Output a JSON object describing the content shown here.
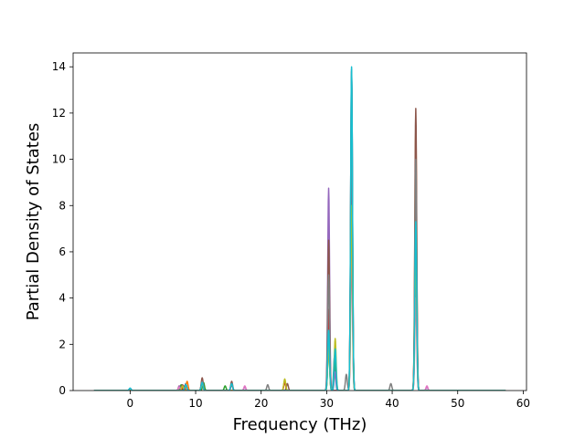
{
  "chart_data": {
    "type": "line",
    "title": "",
    "xlabel": "Frequency (THz)",
    "ylabel": "Partial Density of States",
    "xlim": [
      -8.7,
      60.5
    ],
    "ylim": [
      0,
      14.6
    ],
    "xticks": [
      0,
      10,
      20,
      30,
      40,
      50,
      60
    ],
    "yticks": [
      0,
      2,
      4,
      6,
      8,
      10,
      12,
      14
    ],
    "xtick_labels": [
      "0",
      "10",
      "20",
      "30",
      "40",
      "50",
      "60"
    ],
    "ytick_labels": [
      "0",
      "2",
      "4",
      "6",
      "8",
      "10",
      "12",
      "14"
    ],
    "grid": false,
    "legend": "none",
    "x_data_range": [
      -5.5,
      57.3
    ],
    "series": [
      {
        "color": "#1f77b4",
        "peaks": [
          [
            0.0,
            0.1
          ],
          [
            8.5,
            0.3
          ],
          [
            11.0,
            0.4
          ],
          [
            15.5,
            0.3
          ],
          [
            30.3,
            2.4
          ],
          [
            31.2,
            1.5
          ],
          [
            33.8,
            13.9
          ],
          [
            43.6,
            7.2
          ]
        ]
      },
      {
        "color": "#ff7f0e",
        "peaks": [
          [
            7.5,
            0.2
          ],
          [
            8.7,
            0.4
          ],
          [
            11.0,
            0.3
          ],
          [
            23.6,
            0.45
          ],
          [
            30.3,
            3.0
          ],
          [
            33.8,
            11.0
          ],
          [
            43.6,
            11.4
          ]
        ]
      },
      {
        "color": "#2ca02c",
        "peaks": [
          [
            7.8,
            0.25
          ],
          [
            11.2,
            0.35
          ],
          [
            14.5,
            0.2
          ],
          [
            30.3,
            2.0
          ],
          [
            31.3,
            1.3
          ],
          [
            33.8,
            9.0
          ],
          [
            43.6,
            6.0
          ]
        ]
      },
      {
        "color": "#d62728",
        "peaks": [
          [
            8.2,
            0.2
          ],
          [
            11.0,
            0.45
          ],
          [
            15.5,
            0.25
          ],
          [
            23.6,
            0.35
          ],
          [
            30.3,
            3.5
          ],
          [
            33.8,
            10.0
          ],
          [
            43.6,
            9.0
          ]
        ]
      },
      {
        "color": "#9467bd",
        "peaks": [
          [
            7.5,
            0.2
          ],
          [
            11.0,
            0.3
          ],
          [
            17.5,
            0.15
          ],
          [
            30.3,
            8.75
          ],
          [
            31.3,
            0.8
          ],
          [
            33.8,
            6.0
          ],
          [
            43.6,
            5.0
          ],
          [
            45.3,
            0.15
          ]
        ]
      },
      {
        "color": "#8c564b",
        "peaks": [
          [
            8.0,
            0.25
          ],
          [
            11.0,
            0.55
          ],
          [
            15.5,
            0.4
          ],
          [
            24.0,
            0.3
          ],
          [
            30.3,
            6.5
          ],
          [
            33.8,
            13.8
          ],
          [
            43.6,
            12.2
          ]
        ]
      },
      {
        "color": "#e377c2",
        "peaks": [
          [
            7.5,
            0.15
          ],
          [
            11.0,
            0.3
          ],
          [
            17.5,
            0.2
          ],
          [
            30.3,
            2.5
          ],
          [
            33.8,
            7.0
          ],
          [
            43.6,
            4.0
          ],
          [
            45.3,
            0.2
          ]
        ]
      },
      {
        "color": "#7f7f7f",
        "peaks": [
          [
            8.0,
            0.2
          ],
          [
            11.0,
            0.4
          ],
          [
            21.0,
            0.25
          ],
          [
            30.3,
            5.0
          ],
          [
            33.0,
            0.7
          ],
          [
            33.8,
            12.0
          ],
          [
            39.8,
            0.3
          ],
          [
            43.6,
            10.0
          ]
        ]
      },
      {
        "color": "#bcbd22",
        "peaks": [
          [
            8.0,
            0.2
          ],
          [
            11.0,
            0.3
          ],
          [
            23.6,
            0.5
          ],
          [
            30.3,
            2.0
          ],
          [
            31.3,
            2.25
          ],
          [
            33.8,
            8.0
          ],
          [
            43.6,
            6.0
          ]
        ]
      },
      {
        "color": "#17becf",
        "peaks": [
          [
            0.0,
            0.1
          ],
          [
            8.5,
            0.25
          ],
          [
            11.0,
            0.35
          ],
          [
            15.5,
            0.3
          ],
          [
            30.3,
            2.6
          ],
          [
            31.3,
            1.8
          ],
          [
            33.8,
            14.0
          ],
          [
            43.6,
            7.3
          ]
        ]
      }
    ]
  }
}
